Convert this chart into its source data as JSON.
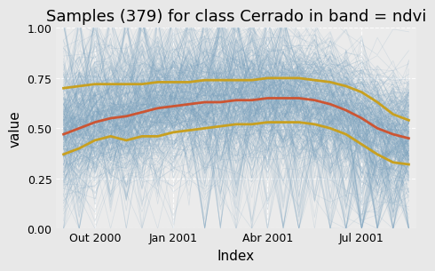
{
  "title": "Samples (379) for class Cerrado in band = ndvi",
  "xlabel": "Index",
  "ylabel": "value",
  "n_samples": 379,
  "n_timepoints": 23,
  "x_tick_labels": [
    "Out 2000",
    "Jan 2001",
    "Abr 2001",
    "Jul 2001"
  ],
  "x_tick_positions": [
    2,
    7,
    13,
    19
  ],
  "ylim": [
    0.0,
    1.0
  ],
  "y_ticks": [
    0.0,
    0.25,
    0.5,
    0.75,
    1.0
  ],
  "sample_color": "#7ba3c0",
  "sample_alpha": 0.2,
  "sample_linewidth": 0.5,
  "median_color": "#cc5533",
  "q75_color": "#c8a020",
  "q25_color": "#c8a020",
  "overlay_linewidth": 2.0,
  "bg_color": "#e8e8e8",
  "plot_bg_color": "#ebebeb",
  "grid_color": "#ffffff",
  "title_fontsize": 13,
  "axis_label_fontsize": 11,
  "tick_fontsize": 9
}
